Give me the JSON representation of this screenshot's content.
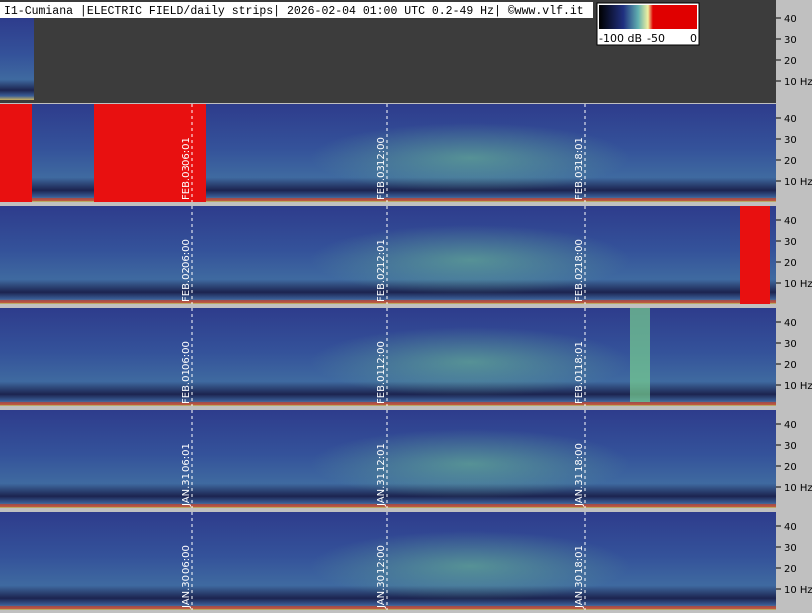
{
  "header": {
    "title": "I1-Cumiana |ELECTRIC FIELD/daily strips| 2026-02-04 01:00 UTC 0.2-49 Hz| ©www.vlf.it"
  },
  "colorbar": {
    "labels": [
      "-100 dB",
      "-50",
      "0"
    ]
  },
  "freq_labels": [
    "40",
    "30",
    "20",
    "10 Hz"
  ],
  "strips": [
    {
      "markers": [
        {
          "date": "FEB.03",
          "time": "06:01"
        },
        {
          "date": "FEB.03",
          "time": "12:00"
        },
        {
          "date": "FEB.03",
          "time": "18:01"
        }
      ]
    },
    {
      "markers": [
        {
          "date": "FEB.02",
          "time": "06:00"
        },
        {
          "date": "FEB.02",
          "time": "12:01"
        },
        {
          "date": "FEB.02",
          "time": "18:00"
        }
      ]
    },
    {
      "markers": [
        {
          "date": "FEB.01",
          "time": "06:00"
        },
        {
          "date": "FEB.01",
          "time": "12:00"
        },
        {
          "date": "FEB.01",
          "time": "18:01"
        }
      ]
    },
    {
      "markers": [
        {
          "date": "JAN.31",
          "time": "06:01"
        },
        {
          "date": "JAN.31",
          "time": "12:01"
        },
        {
          "date": "JAN.31",
          "time": "18:00"
        }
      ]
    },
    {
      "markers": [
        {
          "date": "JAN.30",
          "time": "06:00"
        },
        {
          "date": "JAN.30",
          "time": "12:00"
        },
        {
          "date": "JAN.30",
          "time": "18:01"
        }
      ]
    }
  ]
}
